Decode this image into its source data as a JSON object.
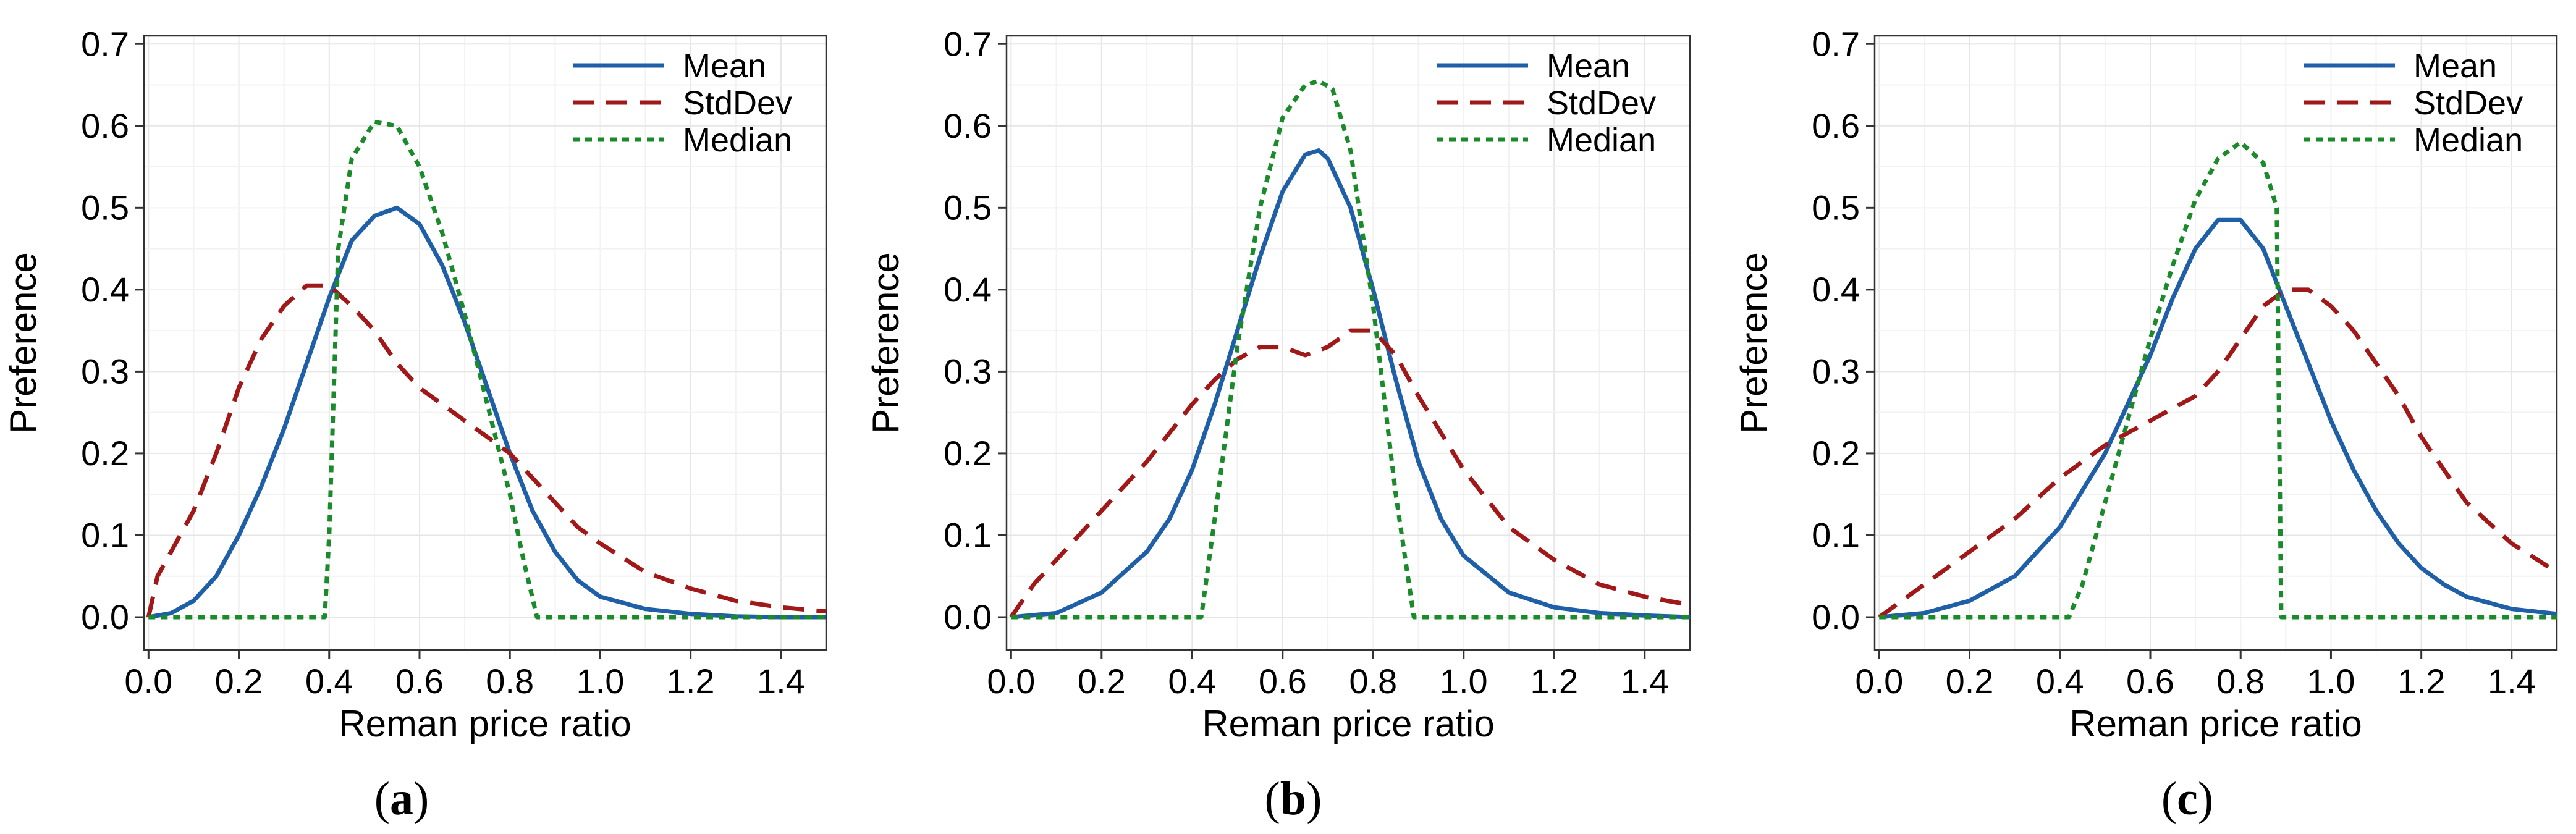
{
  "chart_data": [
    {
      "panel": "a",
      "type": "line",
      "xlabel": "Reman price ratio",
      "ylabel": "Preference",
      "xlim": [
        -0.01,
        1.5
      ],
      "ylim": [
        -0.04,
        0.71
      ],
      "xticks": [
        "0.0",
        "0.2",
        "0.4",
        "0.6",
        "0.8",
        "1.0",
        "1.2",
        "1.4"
      ],
      "yticks": [
        "0.0",
        "0.1",
        "0.2",
        "0.3",
        "0.4",
        "0.5",
        "0.6",
        "0.7"
      ],
      "grid": true,
      "legend": "top-right",
      "caption": "a",
      "series": [
        {
          "name": "Mean",
          "style": "solid",
          "color": "#1f5fa8",
          "x": [
            0,
            0.05,
            0.1,
            0.15,
            0.2,
            0.25,
            0.3,
            0.35,
            0.4,
            0.45,
            0.5,
            0.55,
            0.6,
            0.65,
            0.7,
            0.75,
            0.8,
            0.85,
            0.9,
            0.95,
            1.0,
            1.1,
            1.2,
            1.3,
            1.4,
            1.5
          ],
          "y": [
            0,
            0.005,
            0.02,
            0.05,
            0.1,
            0.16,
            0.23,
            0.31,
            0.39,
            0.46,
            0.49,
            0.5,
            0.48,
            0.43,
            0.36,
            0.28,
            0.2,
            0.13,
            0.08,
            0.045,
            0.025,
            0.01,
            0.004,
            0.001,
            0,
            0
          ]
        },
        {
          "name": "StdDev",
          "style": "dashed",
          "color": "#a01818",
          "x": [
            0,
            0.02,
            0.05,
            0.1,
            0.15,
            0.2,
            0.25,
            0.3,
            0.35,
            0.4,
            0.45,
            0.5,
            0.55,
            0.6,
            0.65,
            0.7,
            0.75,
            0.8,
            0.85,
            0.9,
            0.95,
            1.0,
            1.1,
            1.2,
            1.3,
            1.4,
            1.5
          ],
          "y": [
            0,
            0.05,
            0.08,
            0.13,
            0.2,
            0.28,
            0.34,
            0.38,
            0.405,
            0.405,
            0.38,
            0.35,
            0.31,
            0.28,
            0.26,
            0.24,
            0.22,
            0.2,
            0.17,
            0.14,
            0.11,
            0.09,
            0.055,
            0.035,
            0.02,
            0.012,
            0.007
          ]
        },
        {
          "name": "Median",
          "style": "dotted",
          "color": "#1a8a2a",
          "x": [
            0,
            0.39,
            0.4,
            0.42,
            0.45,
            0.5,
            0.55,
            0.6,
            0.65,
            0.7,
            0.75,
            0.8,
            0.83,
            0.86,
            0.9,
            1.0,
            1.2,
            1.5
          ],
          "y": [
            0,
            0,
            0.1,
            0.45,
            0.56,
            0.605,
            0.6,
            0.55,
            0.47,
            0.37,
            0.26,
            0.15,
            0.07,
            0,
            0,
            0,
            0,
            0
          ]
        }
      ]
    },
    {
      "panel": "b",
      "type": "line",
      "xlabel": "Reman price ratio",
      "ylabel": "Preference",
      "xlim": [
        -0.01,
        1.5
      ],
      "ylim": [
        -0.04,
        0.71
      ],
      "xticks": [
        "0.0",
        "0.2",
        "0.4",
        "0.6",
        "0.8",
        "1.0",
        "1.2",
        "1.4"
      ],
      "yticks": [
        "0.0",
        "0.1",
        "0.2",
        "0.3",
        "0.4",
        "0.5",
        "0.6",
        "0.7"
      ],
      "grid": true,
      "legend": "top-right",
      "caption": "b",
      "series": [
        {
          "name": "Mean",
          "style": "solid",
          "color": "#1f5fa8",
          "x": [
            0,
            0.1,
            0.2,
            0.3,
            0.35,
            0.4,
            0.45,
            0.5,
            0.55,
            0.6,
            0.65,
            0.68,
            0.7,
            0.75,
            0.8,
            0.85,
            0.9,
            0.95,
            1.0,
            1.1,
            1.2,
            1.3,
            1.4,
            1.5
          ],
          "y": [
            0,
            0.005,
            0.03,
            0.08,
            0.12,
            0.18,
            0.26,
            0.35,
            0.44,
            0.52,
            0.565,
            0.57,
            0.56,
            0.5,
            0.4,
            0.29,
            0.19,
            0.12,
            0.075,
            0.03,
            0.012,
            0.005,
            0.002,
            0
          ]
        },
        {
          "name": "StdDev",
          "style": "dashed",
          "color": "#a01818",
          "x": [
            0,
            0.05,
            0.1,
            0.2,
            0.3,
            0.4,
            0.45,
            0.5,
            0.55,
            0.6,
            0.65,
            0.7,
            0.75,
            0.8,
            0.85,
            0.9,
            1.0,
            1.1,
            1.2,
            1.3,
            1.4,
            1.5
          ],
          "y": [
            0,
            0.04,
            0.07,
            0.13,
            0.19,
            0.26,
            0.29,
            0.315,
            0.33,
            0.33,
            0.32,
            0.33,
            0.35,
            0.35,
            0.32,
            0.27,
            0.18,
            0.11,
            0.07,
            0.04,
            0.025,
            0.015
          ]
        },
        {
          "name": "Median",
          "style": "dotted",
          "color": "#1a8a2a",
          "x": [
            0,
            0.42,
            0.45,
            0.5,
            0.55,
            0.6,
            0.65,
            0.68,
            0.71,
            0.75,
            0.8,
            0.85,
            0.89,
            0.9,
            1.0,
            1.2,
            1.5
          ],
          "y": [
            0,
            0,
            0.12,
            0.33,
            0.5,
            0.61,
            0.65,
            0.655,
            0.645,
            0.57,
            0.38,
            0.15,
            0,
            0,
            0,
            0,
            0
          ]
        }
      ]
    },
    {
      "panel": "c",
      "type": "line",
      "xlabel": "Reman price ratio",
      "ylabel": "Preference",
      "xlim": [
        -0.01,
        1.5
      ],
      "ylim": [
        -0.04,
        0.71
      ],
      "xticks": [
        "0.0",
        "0.2",
        "0.4",
        "0.6",
        "0.8",
        "1.0",
        "1.2",
        "1.4"
      ],
      "yticks": [
        "0.0",
        "0.1",
        "0.2",
        "0.3",
        "0.4",
        "0.5",
        "0.6",
        "0.7"
      ],
      "grid": true,
      "legend": "top-right",
      "caption": "c",
      "series": [
        {
          "name": "Mean",
          "style": "solid",
          "color": "#1f5fa8",
          "x": [
            0,
            0.1,
            0.2,
            0.3,
            0.4,
            0.5,
            0.55,
            0.6,
            0.65,
            0.7,
            0.75,
            0.8,
            0.85,
            0.9,
            0.95,
            1.0,
            1.05,
            1.1,
            1.15,
            1.2,
            1.25,
            1.3,
            1.4,
            1.5
          ],
          "y": [
            0,
            0.005,
            0.02,
            0.05,
            0.11,
            0.2,
            0.26,
            0.32,
            0.39,
            0.45,
            0.485,
            0.485,
            0.45,
            0.38,
            0.31,
            0.24,
            0.18,
            0.13,
            0.09,
            0.06,
            0.04,
            0.025,
            0.01,
            0.004
          ]
        },
        {
          "name": "StdDev",
          "style": "dashed",
          "color": "#a01818",
          "x": [
            0,
            0.1,
            0.2,
            0.3,
            0.4,
            0.5,
            0.6,
            0.65,
            0.7,
            0.75,
            0.8,
            0.85,
            0.9,
            0.95,
            1.0,
            1.05,
            1.1,
            1.15,
            1.2,
            1.25,
            1.3,
            1.4,
            1.5
          ],
          "y": [
            0,
            0.04,
            0.08,
            0.12,
            0.17,
            0.21,
            0.24,
            0.255,
            0.27,
            0.3,
            0.34,
            0.38,
            0.4,
            0.4,
            0.38,
            0.35,
            0.31,
            0.27,
            0.22,
            0.18,
            0.14,
            0.09,
            0.055
          ]
        },
        {
          "name": "Median",
          "style": "dotted",
          "color": "#1a8a2a",
          "x": [
            0,
            0.42,
            0.45,
            0.5,
            0.55,
            0.6,
            0.65,
            0.7,
            0.75,
            0.8,
            0.85,
            0.88,
            0.89,
            0.9,
            1.0,
            1.2,
            1.5
          ],
          "y": [
            0,
            0,
            0.04,
            0.14,
            0.24,
            0.34,
            0.43,
            0.51,
            0.56,
            0.58,
            0.555,
            0.5,
            0,
            0,
            0,
            0,
            0
          ]
        }
      ]
    }
  ]
}
